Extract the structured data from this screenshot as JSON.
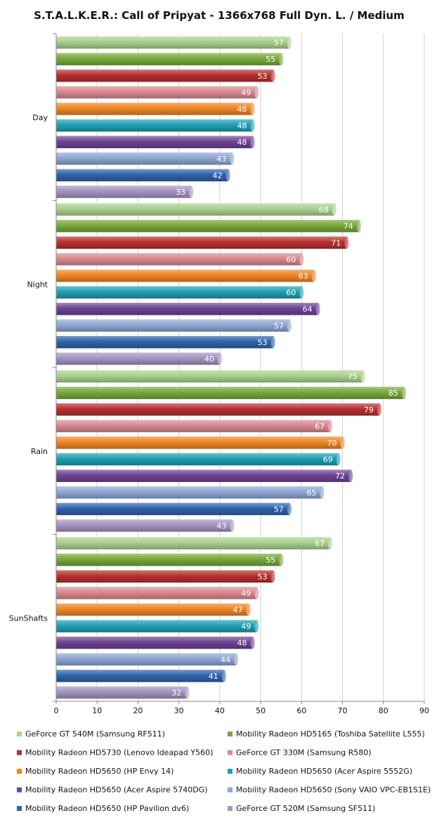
{
  "chart_data": {
    "type": "bar",
    "orientation": "horizontal",
    "title": "S.T.A.L.K.E.R.: Call of Pripyat - 1366x768 Full Dyn. L. / Medium",
    "categories": [
      "Day",
      "Night",
      "Rain",
      "SunShafts"
    ],
    "xlim": [
      0,
      90
    ],
    "xticks": [
      0,
      10,
      20,
      30,
      40,
      50,
      60,
      70,
      80,
      90
    ],
    "grid": true,
    "legend_position": "bottom",
    "series": [
      {
        "name": "GeForce GT 540M (Samsung RF511)",
        "color": "#a9d18e",
        "values": [
          57,
          68,
          75,
          67
        ]
      },
      {
        "name": "Mobility Radeon HD5165 (Toshiba Satellite L555)",
        "color": "#77a83a",
        "values": [
          55,
          74,
          85,
          55
        ]
      },
      {
        "name": "Mobility Radeon HD5730 (Lenovo Ideapad Y560)",
        "color": "#b8302f",
        "values": [
          53,
          71,
          79,
          53
        ]
      },
      {
        "name": "GeForce GT 330M (Samsung R580)",
        "color": "#d98891",
        "values": [
          49,
          60,
          67,
          49
        ]
      },
      {
        "name": "Mobility Radeon HD5650 (HP Envy 14)",
        "color": "#ee8524",
        "values": [
          48,
          63,
          70,
          47
        ]
      },
      {
        "name": "Mobility Radeon HD5650 (Acer Aspire 5552G)",
        "color": "#1f9fb3",
        "values": [
          48,
          60,
          69,
          49
        ]
      },
      {
        "name": "Mobility Radeon HD5650 (Acer Aspire 5740DG)",
        "color": "#6e4394",
        "values": [
          48,
          64,
          72,
          48
        ]
      },
      {
        "name": "Mobility Radeon HD5650 (Sony VAIO VPC-EB1S1E)",
        "color": "#8ea6d4",
        "values": [
          43,
          57,
          65,
          44
        ]
      },
      {
        "name": "Mobility Radeon HD5650 (HP Pavilion dv6)",
        "color": "#2f64ab",
        "values": [
          42,
          53,
          57,
          41
        ]
      },
      {
        "name": "GeForce GT 520M (Samsung SF511)",
        "color": "#a494c0",
        "values": [
          33,
          40,
          43,
          32
        ]
      }
    ]
  }
}
